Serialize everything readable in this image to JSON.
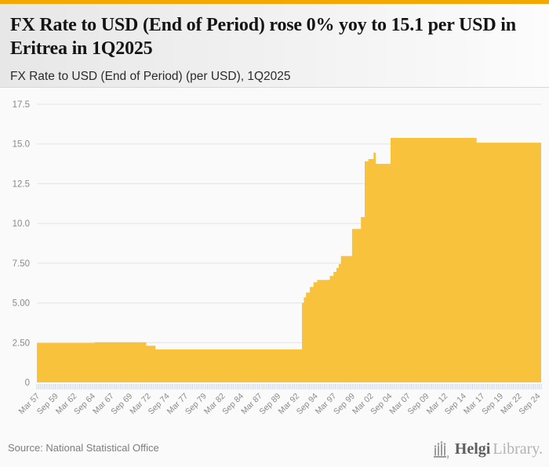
{
  "header": {
    "title": "FX Rate to USD (End of Period) rose 0% yoy to 15.1 per USD in Eritrea in 1Q2025",
    "subtitle": "FX Rate to USD (End of Period) (per USD), 1Q2025"
  },
  "footer": {
    "source": "Source: National Statistical Office",
    "brand": {
      "icon": "helgi-organ-icon",
      "name_primary": "Helgi",
      "name_secondary": "Library."
    }
  },
  "colors": {
    "accent_bar": "#f2a702",
    "area_fill": "#f9bf35",
    "grid_line": "#e4e4e4",
    "quarter_tick": "#c9d1e3",
    "axis_label": "#8a8a8a",
    "title_text": "#141414",
    "subtitle_text": "#2b2b2b",
    "source_text": "#7d7d7d",
    "logo_dark": "#5f5f5f",
    "logo_light": "#b3b3b3",
    "chart_background": "#fafafa"
  },
  "chart_data": {
    "type": "area",
    "title": "FX Rate to USD (End of Period) (per USD), 1Q2025",
    "ylabel": "",
    "xlabel": "",
    "unit": "per USD",
    "grid": true,
    "legend": false,
    "ylim": [
      0,
      17.5
    ],
    "x_range_years": [
      1957.0,
      2025.0
    ],
    "y_tick_labels": [
      "17.5",
      "15.0",
      "12.5",
      "10.0",
      "7.50",
      "5.00",
      "2.50",
      "0"
    ],
    "y_tick_values": [
      17.5,
      15.0,
      12.5,
      10.0,
      7.5,
      5.0,
      2.5,
      0
    ],
    "x_tick_labels": [
      "Mar 57",
      "Sep 59",
      "Mar 62",
      "Sep 64",
      "Mar 67",
      "Sep 69",
      "Mar 72",
      "Sep 74",
      "Mar 77",
      "Sep 79",
      "Mar 82",
      "Sep 84",
      "Mar 87",
      "Sep 89",
      "Mar 92",
      "Sep 94",
      "Mar 97",
      "Sep 99",
      "Mar 02",
      "Sep 04",
      "Mar 07",
      "Sep 09",
      "Mar 12",
      "Sep 14",
      "Mar 17",
      "Sep 19",
      "Mar 22",
      "Sep 24"
    ],
    "x_tick_start_year": 1957.0,
    "x_tick_interval_years": 2.5,
    "series": [
      {
        "name": "FX Rate to USD (End of Period), per USD",
        "interpolation": "step-after",
        "points": [
          [
            1957.0,
            2.48
          ],
          [
            1964.75,
            2.52
          ],
          [
            1971.75,
            2.3
          ],
          [
            1973.0,
            2.07
          ],
          [
            1992.75,
            5.0
          ],
          [
            1993.0,
            5.35
          ],
          [
            1993.3,
            5.65
          ],
          [
            1993.8,
            6.0
          ],
          [
            1994.3,
            6.3
          ],
          [
            1994.8,
            6.45
          ],
          [
            1996.5,
            6.7
          ],
          [
            1997.0,
            6.95
          ],
          [
            1997.4,
            7.2
          ],
          [
            1997.7,
            7.45
          ],
          [
            1998.0,
            7.95
          ],
          [
            1999.5,
            9.65
          ],
          [
            2000.7,
            10.4
          ],
          [
            2001.2,
            13.9
          ],
          [
            2001.7,
            14.05
          ],
          [
            2002.4,
            14.45
          ],
          [
            2002.7,
            13.75
          ],
          [
            2004.7,
            15.38
          ],
          [
            2016.3,
            15.08
          ]
        ],
        "end_year": 2025.0
      }
    ],
    "latest_point": {
      "period": "1Q2025",
      "value": 15.1,
      "yoy_change_pct": 0
    }
  }
}
